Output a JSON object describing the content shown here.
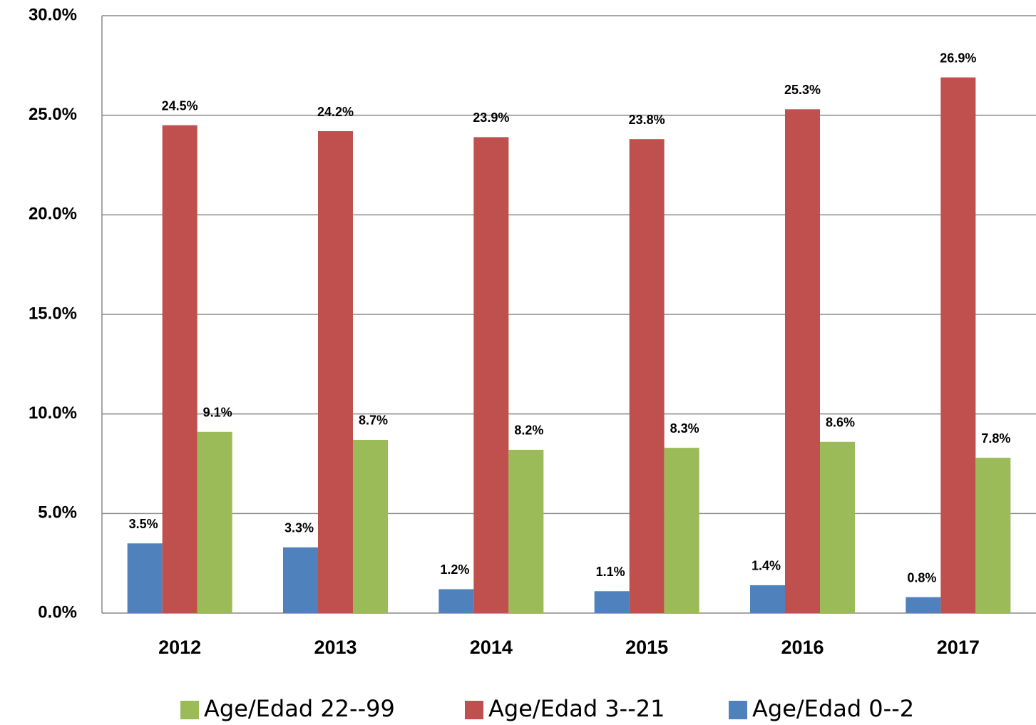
{
  "chart_data": {
    "type": "bar",
    "categories": [
      "2012",
      "2013",
      "2014",
      "2015",
      "2016",
      "2017"
    ],
    "series": [
      {
        "name": "Age/Edad 0--2",
        "color": "#4f81bd",
        "values": [
          3.5,
          3.3,
          1.2,
          1.1,
          1.4,
          0.8
        ],
        "value_labels": [
          "3.5%",
          "3.3%",
          "1.2%",
          "1.1%",
          "1.4%",
          "0.8%"
        ]
      },
      {
        "name": "Age/Edad 3--21",
        "color": "#c0504d",
        "values": [
          24.5,
          24.2,
          23.9,
          23.8,
          25.3,
          26.9
        ],
        "value_labels": [
          "24.5%",
          "24.2%",
          "23.9%",
          "23.8%",
          "25.3%",
          "26.9%"
        ]
      },
      {
        "name": "Age/Edad 22--99",
        "color": "#9bbb59",
        "values": [
          9.1,
          8.7,
          8.2,
          8.3,
          8.6,
          7.8
        ],
        "value_labels": [
          "9.1%",
          "8.7%",
          "8.2%",
          "8.3%",
          "8.6%",
          "7.8%"
        ]
      }
    ],
    "ylim": [
      0,
      30
    ],
    "yticks": [
      {
        "value": 0,
        "label": "0.0%"
      },
      {
        "value": 5,
        "label": "5.0%"
      },
      {
        "value": 10,
        "label": "10.0%"
      },
      {
        "value": 15,
        "label": "15.0%"
      },
      {
        "value": 20,
        "label": "20.0%"
      },
      {
        "value": 25,
        "label": "25.0%"
      },
      {
        "value": 30,
        "label": "30.0%"
      }
    ],
    "grid": true,
    "legend": "bottom"
  }
}
